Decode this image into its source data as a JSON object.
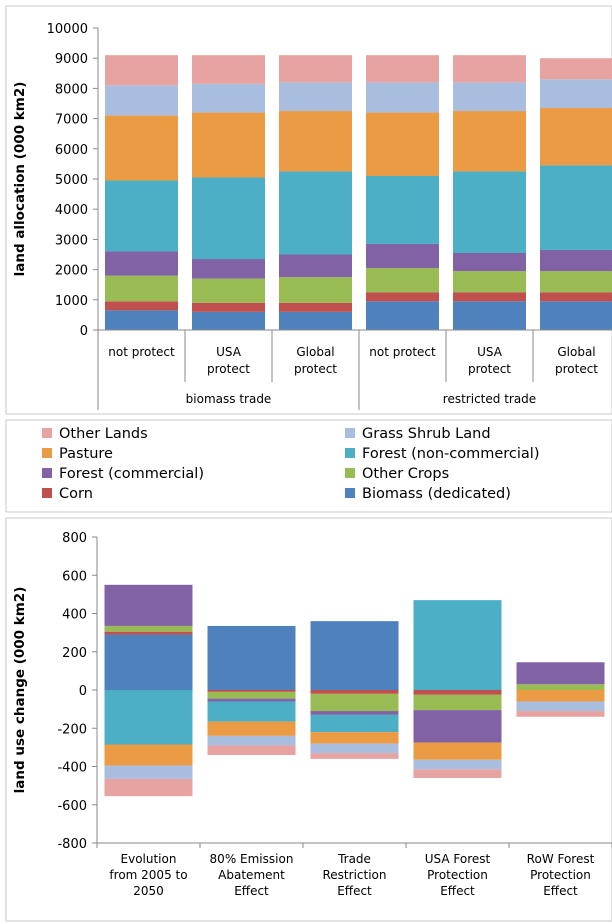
{
  "legend": [
    {
      "label": "Other Lands",
      "color": "#e6a3a2"
    },
    {
      "label": "Grass Shrub Land",
      "color": "#a9bedf"
    },
    {
      "label": "Pasture",
      "color": "#ec9b45"
    },
    {
      "label": "Forest (non-commercial)",
      "color": "#4cafc6"
    },
    {
      "label": "Forest (commercial)",
      "color": "#8163a5"
    },
    {
      "label": "Other Crops",
      "color": "#98bb54"
    },
    {
      "label": "Corn",
      "color": "#c0504d"
    },
    {
      "label": "Biomass (dedicated)",
      "color": "#4f81bd"
    }
  ],
  "chart_data": [
    {
      "type": "bar",
      "stacked": true,
      "ylabel": "land allocation (000 km2)",
      "ylim": [
        0,
        10000
      ],
      "yticks": [
        0,
        1000,
        2000,
        3000,
        4000,
        5000,
        6000,
        7000,
        8000,
        9000,
        10000
      ],
      "categories": [
        "not protect",
        "USA protect",
        "Global protect",
        "not protect",
        "USA protect",
        "Global protect"
      ],
      "category_lines": [
        [
          "not protect"
        ],
        [
          "USA",
          "protect"
        ],
        [
          "Global",
          "protect"
        ],
        [
          "not protect"
        ],
        [
          "USA",
          "protect"
        ],
        [
          "Global",
          "protect"
        ]
      ],
      "groups": [
        {
          "label": "biomass trade",
          "categories": [
            0,
            1,
            2
          ]
        },
        {
          "label": "restricted trade",
          "categories": [
            3,
            4,
            5
          ]
        }
      ],
      "series": [
        {
          "name": "Biomass (dedicated)",
          "color": "#4f81bd",
          "values": [
            650,
            600,
            600,
            950,
            950,
            950
          ]
        },
        {
          "name": "Corn",
          "color": "#c0504d",
          "values": [
            300,
            300,
            300,
            300,
            300,
            300
          ]
        },
        {
          "name": "Other Crops",
          "color": "#98bb54",
          "values": [
            850,
            800,
            850,
            800,
            700,
            700
          ]
        },
        {
          "name": "Forest (commercial)",
          "color": "#8163a5",
          "values": [
            800,
            650,
            750,
            800,
            600,
            700
          ]
        },
        {
          "name": "Forest (non-commercial)",
          "color": "#4cafc6",
          "values": [
            2350,
            2700,
            2750,
            2250,
            2700,
            2800
          ]
        },
        {
          "name": "Pasture",
          "color": "#ec9b45",
          "values": [
            2150,
            2150,
            2000,
            2100,
            2000,
            1900
          ]
        },
        {
          "name": "Grass Shrub Land",
          "color": "#a9bedf",
          "values": [
            1000,
            950,
            950,
            1000,
            950,
            950
          ]
        },
        {
          "name": "Other Lands",
          "color": "#e6a3a2",
          "values": [
            1000,
            950,
            900,
            900,
            900,
            700
          ]
        }
      ]
    },
    {
      "type": "bar",
      "stacked": true,
      "ylabel": "land use change (000 km2)",
      "ylim": [
        -800,
        800
      ],
      "yticks": [
        -800,
        -600,
        -400,
        -200,
        0,
        200,
        400,
        600,
        800
      ],
      "categories": [
        "Evolution from 2005 to 2050",
        "80% Emission Abatement Effect",
        "Trade Restriction Effect",
        "USA Forest Protection Effect",
        "RoW Forest Protection Effect"
      ],
      "category_lines": [
        [
          "Evolution",
          "from 2005 to",
          "2050"
        ],
        [
          "80% Emission",
          "Abatement",
          "Effect"
        ],
        [
          "Trade",
          "Restriction",
          "Effect"
        ],
        [
          "USA Forest",
          "Protection",
          "Effect"
        ],
        [
          "RoW Forest",
          "Protection",
          "Effect"
        ]
      ],
      "series": [
        {
          "name": "Biomass (dedicated)",
          "color": "#4f81bd",
          "values": [
            290,
            335,
            360,
            0,
            0
          ]
        },
        {
          "name": "Corn",
          "color": "#c0504d",
          "values": [
            15,
            -10,
            -20,
            -25,
            0
          ]
        },
        {
          "name": "Other Crops",
          "color": "#98bb54",
          "values": [
            30,
            -35,
            -90,
            -80,
            30
          ]
        },
        {
          "name": "Forest (commercial)",
          "color": "#8163a5",
          "values": [
            215,
            -15,
            -20,
            -170,
            115
          ]
        },
        {
          "name": "Forest (non-commercial)",
          "color": "#4cafc6",
          "values": [
            -285,
            -105,
            -90,
            470,
            0
          ]
        },
        {
          "name": "Pasture",
          "color": "#ec9b45",
          "values": [
            -110,
            -75,
            -60,
            -90,
            -60
          ]
        },
        {
          "name": "Grass Shrub Land",
          "color": "#a9bedf",
          "values": [
            -70,
            -50,
            -50,
            -50,
            -50
          ]
        },
        {
          "name": "Other Lands",
          "color": "#e6a3a2",
          "values": [
            -90,
            -50,
            -30,
            -45,
            -30
          ]
        }
      ]
    }
  ]
}
